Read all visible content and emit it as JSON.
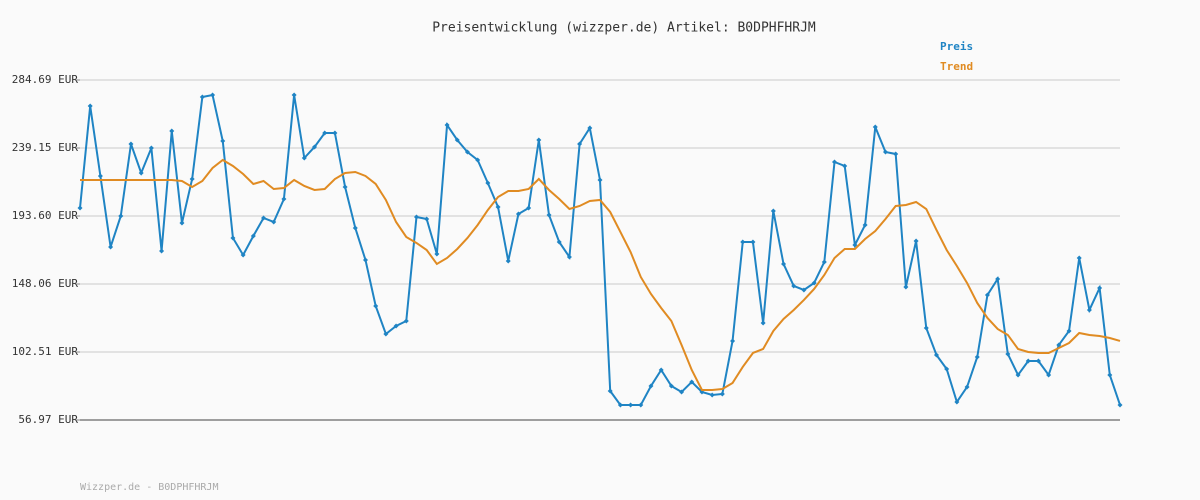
{
  "chart_data": {
    "type": "line",
    "title": "Preisentwicklung (wizzper.de) Artikel: B0DPHFHRJM",
    "footer": "Wizzper.de - B0DPHFHRJM",
    "ylim": [
      56.97,
      284.69
    ],
    "yticks": [
      {
        "value": 56.97,
        "label": "56.97 EUR"
      },
      {
        "value": 102.51,
        "label": "102.51 EUR"
      },
      {
        "value": 148.06,
        "label": "148.06 EUR"
      },
      {
        "value": 193.6,
        "label": "193.60 EUR"
      },
      {
        "value": 239.15,
        "label": "239.15 EUR"
      },
      {
        "value": 284.69,
        "label": "284.69 EUR"
      }
    ],
    "grid": true,
    "series": [
      {
        "name": "Preis",
        "color": "#1f84c4",
        "markers": true,
        "values": [
          198.97,
          267.28,
          220.4,
          172.85,
          193.61,
          241.83,
          222.41,
          239.15,
          170.17,
          250.54,
          188.92,
          218.39,
          273.31,
          274.64,
          243.84,
          178.88,
          167.49,
          180.22,
          192.27,
          189.59,
          204.99,
          274.64,
          232.45,
          239.82,
          249.2,
          249.2,
          213.03,
          185.57,
          164.14,
          133.34,
          114.58,
          119.94,
          123.29,
          192.94,
          191.6,
          168.16,
          254.55,
          244.51,
          236.47,
          231.11,
          215.71,
          199.64,
          163.47,
          194.95,
          198.97,
          244.51,
          194.28,
          176.2,
          166.15,
          241.83,
          252.54,
          217.72,
          76.41,
          67.03,
          67.03,
          67.03,
          79.76,
          90.47,
          79.76,
          75.74,
          82.44,
          75.74,
          73.73,
          74.4,
          109.9,
          176.2,
          176.2,
          121.95,
          196.96,
          161.47,
          146.73,
          144.05,
          148.74,
          162.8,
          229.77,
          227.09,
          174.19,
          187.58,
          253.21,
          236.47,
          235.13,
          146.06,
          176.87,
          118.6,
          100.52,
          91.14,
          69.04,
          79.09,
          99.18,
          140.7,
          151.42,
          101.19,
          87.13,
          96.5,
          96.5,
          87.13,
          107.22,
          116.59,
          165.48,
          130.66,
          145.39,
          87.13,
          67.03
        ]
      },
      {
        "name": "Trend",
        "color": "#e08b22",
        "markers": false,
        "values": [
          217.72,
          217.72,
          217.72,
          217.72,
          217.72,
          217.72,
          217.72,
          217.72,
          217.72,
          217.72,
          217.05,
          213.03,
          217.05,
          225.76,
          231.11,
          227.09,
          221.74,
          215.04,
          217.05,
          211.69,
          212.36,
          217.72,
          213.7,
          211.02,
          211.69,
          218.39,
          222.41,
          223.08,
          220.4,
          215.04,
          204.33,
          189.59,
          179.55,
          175.53,
          170.84,
          161.47,
          165.48,
          171.51,
          178.88,
          187.58,
          197.63,
          206.34,
          210.35,
          210.35,
          211.69,
          218.39,
          211.02,
          204.99,
          198.3,
          200.31,
          203.66,
          204.33,
          196.29,
          182.9,
          169.5,
          152.76,
          141.38,
          132.0,
          123.29,
          107.22,
          90.47,
          77.08,
          77.08,
          77.75,
          81.77,
          92.49,
          101.86,
          104.54,
          116.59,
          124.63,
          130.66,
          137.36,
          144.72,
          154.1,
          165.48,
          171.51,
          171.51,
          178.21,
          183.57,
          191.6,
          200.31,
          200.98,
          202.99,
          198.3,
          184.24,
          170.84,
          160.13,
          148.74,
          135.35,
          125.3,
          117.94,
          113.92,
          104.54,
          102.53,
          101.86,
          101.86,
          105.2,
          108.55,
          115.25,
          113.92,
          113.24,
          111.9,
          109.9
        ]
      }
    ]
  }
}
